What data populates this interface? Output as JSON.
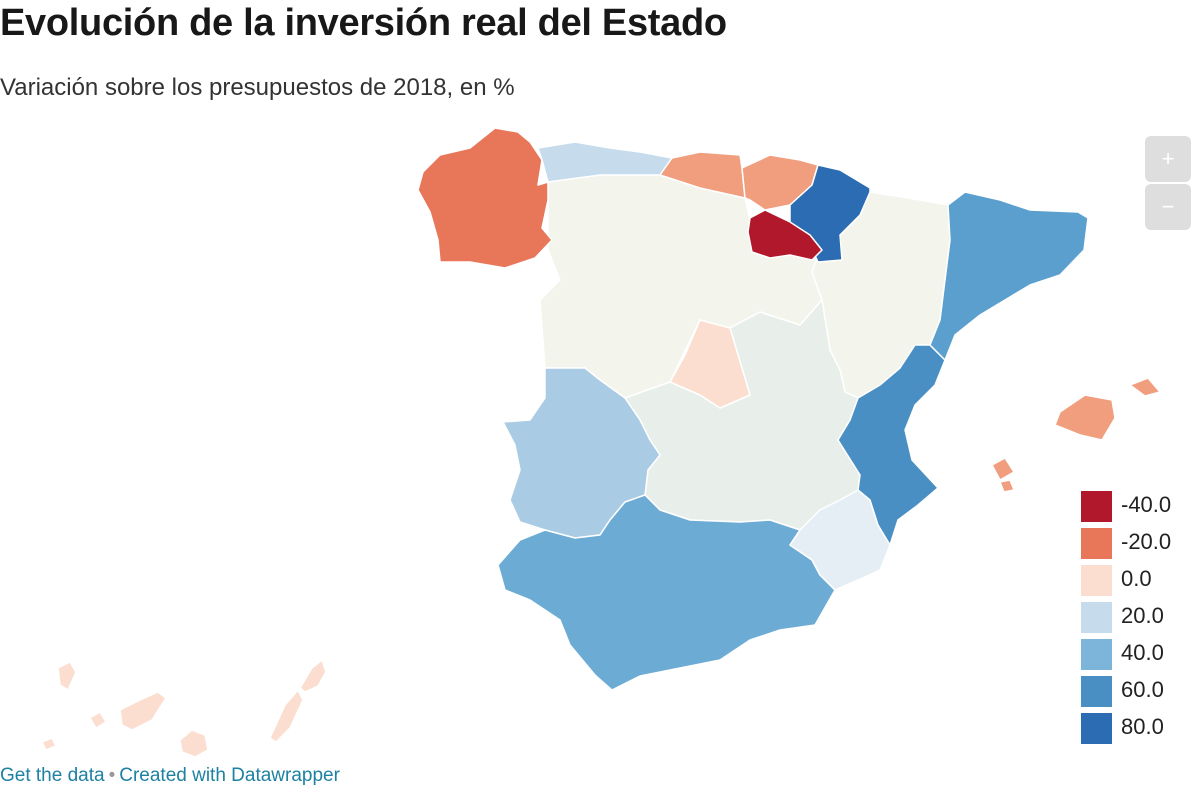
{
  "header": {
    "title": "Evolución de la inversión real del Estado",
    "subtitle": "Variación sobre los presupuestos de 2018, en %"
  },
  "zoom": {
    "in_label": "+",
    "out_label": "−"
  },
  "legend": [
    {
      "label": "-40.0",
      "color": "#b2182b"
    },
    {
      "label": "-20.0",
      "color": "#e8775a"
    },
    {
      "label": "0.0",
      "color": "#fbdecf"
    },
    {
      "label": "20.0",
      "color": "#c6dced"
    },
    {
      "label": "40.0",
      "color": "#7cb5d9"
    },
    {
      "label": "60.0",
      "color": "#4a8fc4"
    },
    {
      "label": "80.0",
      "color": "#2b6cb2"
    }
  ],
  "regions": {
    "galicia": {
      "color": "#e8775a"
    },
    "asturias": {
      "color": "#c6dced"
    },
    "cantabria": {
      "color": "#f09e7e"
    },
    "pais_vasco": {
      "color": "#f09e7e"
    },
    "navarra": {
      "color": "#2b6cb2"
    },
    "la_rioja": {
      "color": "#b2182b"
    },
    "aragon": {
      "color": "#f3f4ec"
    },
    "cataluna": {
      "color": "#5a9fcd"
    },
    "castilla_y_leon": {
      "color": "#f3f4ec"
    },
    "madrid": {
      "color": "#fbdecf"
    },
    "castilla_la_mancha": {
      "color": "#e8eeea"
    },
    "comunidad_valenciana": {
      "color": "#4a8fc4"
    },
    "extremadura": {
      "color": "#a9cbe4"
    },
    "andalucia": {
      "color": "#6cabd3"
    },
    "murcia": {
      "color": "#e4eef4"
    },
    "baleares": {
      "color": "#f09e7e"
    },
    "canarias": {
      "color": "#fbdecf"
    }
  },
  "footer": {
    "get_data": "Get the data",
    "separator": "•",
    "created_with": "Created with Datawrapper"
  }
}
